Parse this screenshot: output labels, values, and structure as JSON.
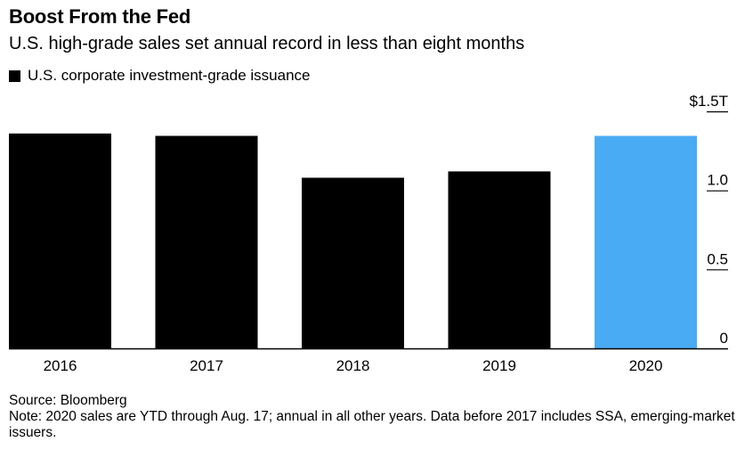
{
  "chart_data": {
    "type": "bar",
    "title": "Boost From the Fed",
    "subtitle": "U.S. high-grade sales set annual record in less than eight months",
    "legend": [
      "U.S. corporate investment-grade issuance"
    ],
    "categories": [
      "2016",
      "2017",
      "2018",
      "2019",
      "2020"
    ],
    "values": [
      1.36,
      1.345,
      1.08,
      1.12,
      1.345
    ],
    "colors": [
      "#000000",
      "#000000",
      "#000000",
      "#000000",
      "#4aabf5"
    ],
    "ylim": [
      0,
      1.5
    ],
    "yticks": [
      {
        "value": 0,
        "label": "0"
      },
      {
        "value": 0.5,
        "label": "0.5"
      },
      {
        "value": 1.0,
        "label": "1.0"
      },
      {
        "value": 1.5,
        "label": "$1.5T"
      }
    ],
    "xlabel": "",
    "ylabel": ""
  },
  "source": "Source: Bloomberg",
  "note": "Note: 2020 sales are YTD through Aug. 17; annual in all other years. Data before 2017 includes SSA, emerging-market issuers."
}
